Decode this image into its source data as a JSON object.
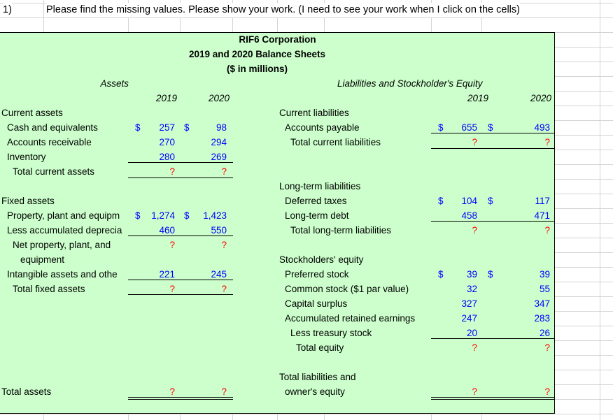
{
  "question": {
    "number": "1)",
    "instruction": "Please find the missing values. Please show your work. (I need to see your work when I click on the cells)"
  },
  "header": {
    "company": "RIF6 Corporation",
    "title": "2019 and 2020 Balance Sheets",
    "units": "($ in millions)"
  },
  "assets": {
    "heading": "Assets",
    "year1": "2019",
    "year2": "2020",
    "current": {
      "label": "Current assets",
      "rows": [
        {
          "label": "Cash and equivalents",
          "cur1": "$",
          "v1": "257",
          "cur2": "$",
          "v2": "98"
        },
        {
          "label": "Accounts receivable",
          "v1": "270",
          "v2": "294"
        },
        {
          "label": "Inventory",
          "v1": "280",
          "v2": "269"
        }
      ],
      "total": {
        "label": "Total current assets",
        "v1": "?",
        "v2": "?"
      }
    },
    "fixed": {
      "label": "Fixed assets",
      "rows": [
        {
          "label": "Property, plant and equipm",
          "cur1": "$",
          "v1": "1,274",
          "cur2": "$",
          "v2": "1,423"
        },
        {
          "label": "Less accumulated deprecia",
          "v1": "460",
          "v2": "550"
        }
      ],
      "net": {
        "label_line1": "Net property, plant, and",
        "label_line2": "equipment",
        "v1": "?",
        "v2": "?"
      },
      "intangible": {
        "label": "Intangible assets and othe",
        "v1": "221",
        "v2": "245"
      },
      "total": {
        "label": "Total fixed assets",
        "v1": "?",
        "v2": "?"
      }
    },
    "grand_total": {
      "label": "Total assets",
      "v1": "?",
      "v2": "?"
    }
  },
  "liabilities": {
    "heading": "Liabilities and Stockholder's Equity",
    "year1": "2019",
    "year2": "2020",
    "current": {
      "label": "Current liabilities",
      "rows": [
        {
          "label": "Accounts payable",
          "cur1": "$",
          "v1": "655",
          "cur2": "$",
          "v2": "493"
        }
      ],
      "total": {
        "label": "Total current liabilities",
        "v1": "?",
        "v2": "?"
      }
    },
    "long_term": {
      "label": "Long-term liabilities",
      "rows": [
        {
          "label": "Deferred taxes",
          "cur1": "$",
          "v1": "104",
          "cur2": "$",
          "v2": "117"
        },
        {
          "label": "Long-term debt",
          "v1": "458",
          "v2": "471"
        }
      ],
      "total": {
        "label": "Total long-term liabilities",
        "v1": "?",
        "v2": "?"
      }
    },
    "equity": {
      "label": "Stockholders' equity",
      "rows": [
        {
          "label": "Preferred stock",
          "cur1": "$",
          "v1": "39",
          "cur2": "$",
          "v2": "39"
        },
        {
          "label": "Common stock ($1 par value)",
          "v1": "32",
          "v2": "55"
        },
        {
          "label": "Capital surplus",
          "v1": "327",
          "v2": "347"
        },
        {
          "label": "Accumulated retained earnings",
          "v1": "247",
          "v2": "283"
        },
        {
          "label": "Less treasury stock",
          "v1": "20",
          "v2": "26"
        }
      ],
      "total": {
        "label": "Total equity",
        "v1": "?",
        "v2": "?"
      }
    },
    "grand_total": {
      "label_line1": "Total liabilities and",
      "label_line2": "owner's equity",
      "v1": "?",
      "v2": "?"
    }
  },
  "colors": {
    "input": "#0000ff",
    "missing": "#ff0000",
    "fill": "#ccffcc"
  }
}
